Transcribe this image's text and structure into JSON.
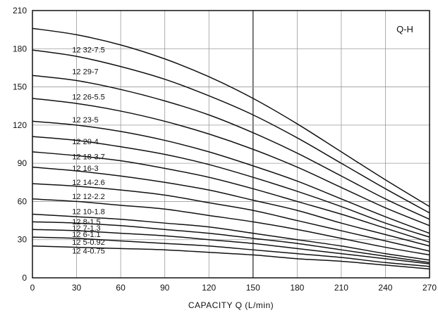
{
  "chart_data": {
    "type": "line",
    "title": "Q-H",
    "xlabel": "CAPACITY  Q (L/min)",
    "ylabel": "",
    "xlim": [
      0,
      270
    ],
    "ylim": [
      0,
      210
    ],
    "xticks": [
      0,
      30,
      60,
      90,
      120,
      150,
      180,
      210,
      240,
      270
    ],
    "yticks": [
      0,
      30,
      60,
      90,
      120,
      150,
      180,
      210
    ],
    "grid": true,
    "legend": "inline labels",
    "colors": {
      "line": "#111111",
      "grid": "#999999",
      "grid_major": "#333333"
    },
    "x": [
      0,
      30,
      60,
      90,
      120,
      150,
      180,
      210,
      240,
      270
    ],
    "series": [
      {
        "name": "12 32-7.5",
        "values": [
          196,
          191,
          183,
          172,
          158,
          141,
          121,
          99,
          77,
          56
        ]
      },
      {
        "name": "12 29-7",
        "values": [
          179,
          174,
          166,
          156,
          143,
          128,
          110,
          90,
          70,
          51
        ]
      },
      {
        "name": "12 26-5.5",
        "values": [
          159,
          155,
          148,
          139,
          128,
          114,
          98,
          80,
          62,
          46
        ]
      },
      {
        "name": "12 23-5",
        "values": [
          141,
          137,
          131,
          123,
          113,
          101,
          87,
          71,
          55,
          41
        ]
      },
      {
        "name": "12 20-4",
        "values": [
          123,
          120,
          115,
          108,
          99,
          88,
          76,
          62,
          48,
          35
        ]
      },
      {
        "name": "12 18-3.7",
        "values": [
          111,
          108,
          103,
          97,
          89,
          79,
          68,
          56,
          43,
          32
        ]
      },
      {
        "name": "12 16-3",
        "values": [
          99,
          96,
          92,
          86,
          79,
          70,
          60,
          50,
          39,
          28
        ]
      },
      {
        "name": "12 14-2.6",
        "values": [
          87,
          84,
          80,
          75,
          69,
          61,
          53,
          43,
          34,
          25
        ]
      },
      {
        "name": "12 12-2.2",
        "values": [
          74,
          72,
          69,
          65,
          59,
          53,
          45,
          37,
          29,
          21
        ]
      },
      {
        "name": "12 10-1.8",
        "values": [
          62,
          60,
          57,
          54,
          49,
          44,
          38,
          31,
          24,
          18
        ]
      },
      {
        "name": "12 8-1.5",
        "values": [
          50,
          48,
          46,
          43,
          40,
          35,
          30,
          25,
          19,
          14
        ]
      },
      {
        "name": "12 7-1.3",
        "values": [
          44,
          43,
          41,
          38,
          35,
          31,
          27,
          22,
          17,
          12
        ]
      },
      {
        "name": "12 6-1.1",
        "values": [
          38,
          37,
          35,
          33,
          30,
          27,
          23,
          19,
          15,
          11
        ]
      },
      {
        "name": "12 5-0.92",
        "values": [
          32,
          31,
          29,
          27,
          25,
          22,
          19,
          16,
          12,
          9
        ]
      },
      {
        "name": "12 4-0.75",
        "values": [
          25,
          24,
          23,
          22,
          20,
          18,
          15,
          13,
          10,
          7
        ]
      }
    ],
    "curve_labels": [
      {
        "text": "12 32-7.5",
        "x": 27,
        "y": 177
      },
      {
        "text": "12 29-7",
        "x": 27,
        "y": 160
      },
      {
        "text": "12 26-5.5",
        "x": 27,
        "y": 140
      },
      {
        "text": "12 23-5",
        "x": 27,
        "y": 122
      },
      {
        "text": "12 20-4",
        "x": 27,
        "y": 105
      },
      {
        "text": "12 18-3.7",
        "x": 27,
        "y": 93
      },
      {
        "text": "12 16-3",
        "x": 27,
        "y": 84
      },
      {
        "text": "12 14-2.6",
        "x": 27,
        "y": 73
      },
      {
        "text": "12 12-2.2",
        "x": 27,
        "y": 62
      },
      {
        "text": "12 10-1.8",
        "x": 27,
        "y": 50
      },
      {
        "text": "12 8-1.5",
        "x": 27,
        "y": 42
      },
      {
        "text": "12 7-1.3",
        "x": 27,
        "y": 37
      },
      {
        "text": "12 6-1.1",
        "x": 27,
        "y": 32
      },
      {
        "text": "12 5-0.92",
        "x": 27,
        "y": 26
      },
      {
        "text": "12 4-0.75",
        "x": 27,
        "y": 19
      }
    ]
  }
}
